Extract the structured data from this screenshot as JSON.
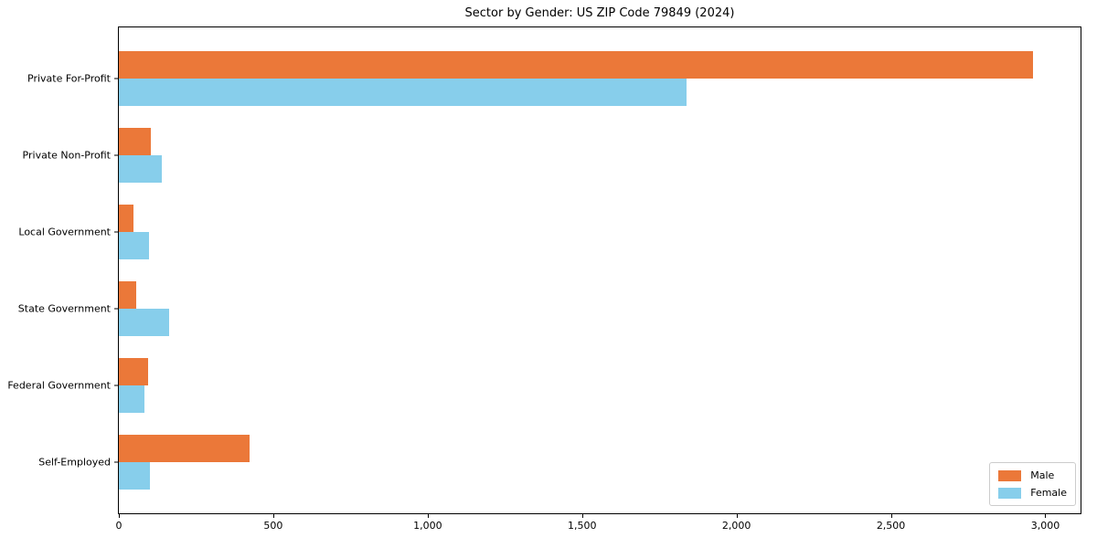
{
  "chart_data": {
    "type": "bar",
    "orientation": "horizontal",
    "title": "Sector by Gender: US ZIP Code 79849 (2024)",
    "categories": [
      "Private For-Profit",
      "Private Non-Profit",
      "Local Government",
      "State Government",
      "Federal Government",
      "Self-Employed"
    ],
    "series": [
      {
        "name": "Male",
        "color": "#EB7839",
        "values": [
          2959,
          103,
          47,
          57,
          95,
          422
        ]
      },
      {
        "name": "Female",
        "color": "#87CEEB",
        "values": [
          1837,
          138,
          97,
          162,
          84,
          100
        ]
      }
    ],
    "xlabel": "",
    "ylabel": "",
    "xlim": [
      0,
      3114
    ],
    "x_ticks": [
      {
        "value": 0,
        "label": "0"
      },
      {
        "value": 500,
        "label": "500"
      },
      {
        "value": 1000,
        "label": "1,000"
      },
      {
        "value": 1500,
        "label": "1,500"
      },
      {
        "value": 2000,
        "label": "2,000"
      },
      {
        "value": 2500,
        "label": "2,500"
      },
      {
        "value": 3000,
        "label": "3,000"
      }
    ],
    "grid": false,
    "legend": {
      "position": "lower right",
      "entries": [
        "Male",
        "Female"
      ]
    }
  }
}
